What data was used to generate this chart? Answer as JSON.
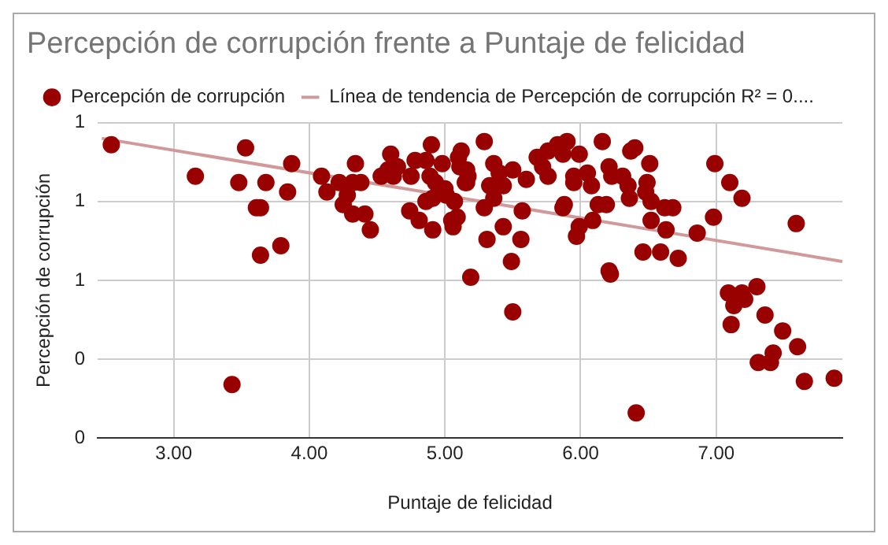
{
  "chart_data": {
    "type": "scatter",
    "title": "Percepción de corrupción frente a Puntaje de felicidad",
    "xlabel": "Puntaje de felicidad",
    "ylabel": "Percepción de corrupción",
    "xlim": [
      2.44,
      7.93
    ],
    "xticks": [
      {
        "value": 3,
        "label": "3.00"
      },
      {
        "value": 4,
        "label": "4.00"
      },
      {
        "value": 5,
        "label": "5.00"
      },
      {
        "value": 6,
        "label": "6.00"
      },
      {
        "value": 7,
        "label": "7.00"
      }
    ],
    "ylim": [
      0,
      1
    ],
    "yticks": [
      {
        "value": 0,
        "label": "0"
      },
      {
        "value": 0.25,
        "label": "0"
      },
      {
        "value": 0.5,
        "label": "1"
      },
      {
        "value": 0.75,
        "label": "1"
      },
      {
        "value": 1,
        "label": "1"
      }
    ],
    "grid": true,
    "legend": "top left",
    "marker": "circle",
    "series": [
      {
        "name": "Percepción de corrupción",
        "color": "#990000",
        "x": [
          2.54,
          3.16,
          3.53,
          3.48,
          3.68,
          3.61,
          3.64,
          3.64,
          3.79,
          3.84,
          3.87,
          3.43,
          4.09,
          4.13,
          4.22,
          4.32,
          4.38,
          4.34,
          4.28,
          4.25,
          4.32,
          4.41,
          4.45,
          4.53,
          4.6,
          4.58,
          4.65,
          4.62,
          4.75,
          4.78,
          4.9,
          4.86,
          4.98,
          4.89,
          4.93,
          5.01,
          5.07,
          4.86,
          4.91,
          4.74,
          4.81,
          4.91,
          5.05,
          5.09,
          5.06,
          5.12,
          5.1,
          5.16,
          5.16,
          5.19,
          5.29,
          5.11,
          5.17,
          5.15,
          5.0,
          5.36,
          5.4,
          5.5,
          5.43,
          5.33,
          5.36,
          5.29,
          5.57,
          5.43,
          5.31,
          5.56,
          5.49,
          5.5,
          5.6,
          5.68,
          5.76,
          5.83,
          5.9,
          5.87,
          5.99,
          5.72,
          5.76,
          5.95,
          5.95,
          6.05,
          6.08,
          5.88,
          5.87,
          5.99,
          5.97,
          6.09,
          6.13,
          6.19,
          6.16,
          6.21,
          6.23,
          6.31,
          6.35,
          6.36,
          6.21,
          6.22,
          6.37,
          6.4,
          6.51,
          6.49,
          6.48,
          6.52,
          6.62,
          6.68,
          6.52,
          6.63,
          6.46,
          6.59,
          6.72,
          6.86,
          6.98,
          6.99,
          7.1,
          7.19,
          7.59,
          6.41,
          7.09,
          7.19,
          7.21,
          7.3,
          7.13,
          7.11,
          7.36,
          7.49,
          7.6,
          7.42,
          7.31,
          7.4,
          7.65,
          7.87
        ],
        "values": [
          0.93,
          0.83,
          0.92,
          0.81,
          0.81,
          0.73,
          0.73,
          0.58,
          0.61,
          0.78,
          0.87,
          0.17,
          0.83,
          0.78,
          0.81,
          0.81,
          0.81,
          0.87,
          0.77,
          0.74,
          0.71,
          0.71,
          0.66,
          0.83,
          0.9,
          0.85,
          0.86,
          0.83,
          0.83,
          0.88,
          0.93,
          0.88,
          0.87,
          0.83,
          0.81,
          0.77,
          0.75,
          0.75,
          0.76,
          0.72,
          0.69,
          0.66,
          0.69,
          0.7,
          0.67,
          0.91,
          0.89,
          0.85,
          0.81,
          0.51,
          0.94,
          0.86,
          0.83,
          0.81,
          0.79,
          0.87,
          0.84,
          0.85,
          0.8,
          0.8,
          0.76,
          0.73,
          0.72,
          0.67,
          0.63,
          0.63,
          0.56,
          0.4,
          0.82,
          0.89,
          0.91,
          0.93,
          0.94,
          0.9,
          0.9,
          0.86,
          0.83,
          0.83,
          0.81,
          0.84,
          0.8,
          0.74,
          0.73,
          0.67,
          0.64,
          0.69,
          0.74,
          0.74,
          0.94,
          0.86,
          0.83,
          0.83,
          0.8,
          0.76,
          0.53,
          0.52,
          0.91,
          0.92,
          0.87,
          0.81,
          0.78,
          0.75,
          0.73,
          0.73,
          0.69,
          0.66,
          0.59,
          0.59,
          0.57,
          0.65,
          0.7,
          0.87,
          0.81,
          0.76,
          0.68,
          0.08,
          0.46,
          0.46,
          0.44,
          0.48,
          0.42,
          0.36,
          0.39,
          0.34,
          0.29,
          0.27,
          0.24,
          0.24,
          0.18,
          0.19
        ]
      },
      {
        "name": "Línea de tendencia de Percepción de corrupción R² = 0....",
        "type": "line",
        "marker": "none",
        "color": "#d09a9a",
        "x": [
          2.47,
          7.93
        ],
        "values": [
          0.95,
          0.56
        ]
      }
    ]
  }
}
